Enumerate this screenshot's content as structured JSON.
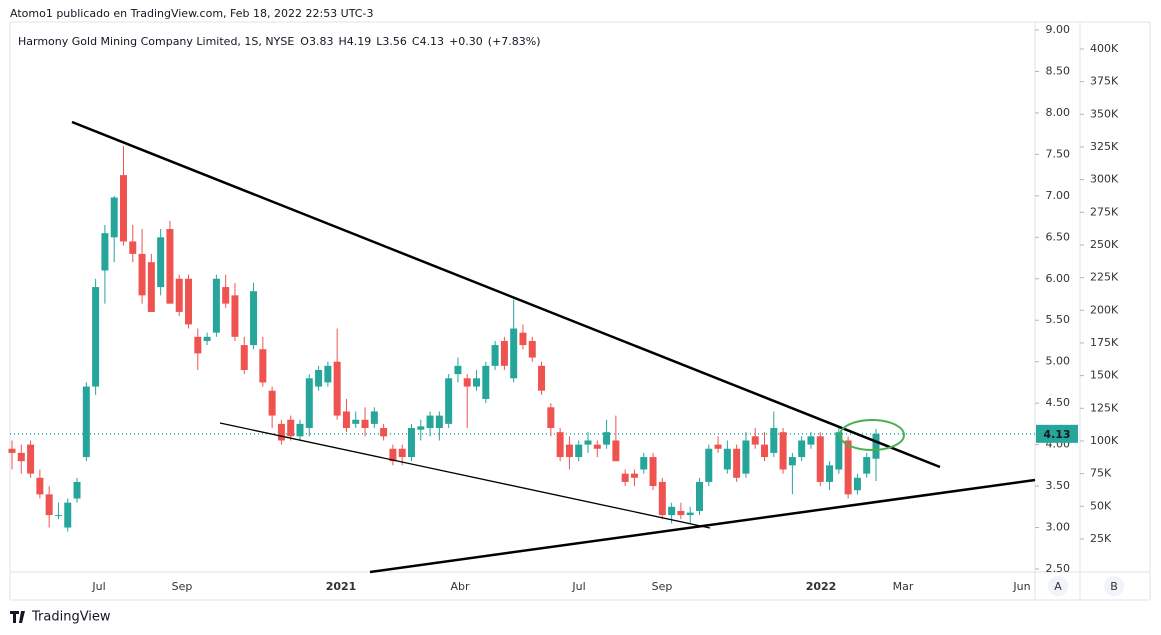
{
  "header": "Atomo1 publicado en TradingView.com, Feb 18, 2022 22:53 UTC-3",
  "footer": "TradingView",
  "buttons": [
    "A",
    "B"
  ],
  "chart_data": {
    "type": "candlestick",
    "title": "Harmony Gold Mining Company Limited, 1S, NYSE",
    "ohlc_legend": [
      {
        "label": "O",
        "value": 3.83
      },
      {
        "label": "H",
        "value": 4.19
      },
      {
        "label": "L",
        "value": 3.56
      },
      {
        "label": "C",
        "value": 4.13
      }
    ],
    "change": {
      "value": 0.3,
      "label": "+0.30"
    },
    "change_pct": {
      "value": 7.83,
      "label": "(+7.83%)"
    },
    "last_price": {
      "value": 4.13,
      "label": "4.13"
    },
    "up_color": "#26a69a",
    "down_color": "#ef5350",
    "x_labels": [
      "Jul",
      "Sep",
      "2021",
      "Abr",
      "Jul",
      "Sep",
      "2022",
      "Mar",
      "Jun"
    ],
    "ylim": [
      2.5,
      9
    ],
    "yticks": [
      {
        "value": 2.5,
        "label": "2.50"
      },
      {
        "value": 3,
        "label": "3.00"
      },
      {
        "value": 3.5,
        "label": "3.50"
      },
      {
        "value": 4,
        "label": "4.00"
      },
      {
        "value": 4.5,
        "label": "4.50"
      },
      {
        "value": 5,
        "label": "5.00"
      },
      {
        "value": 5.5,
        "label": "5.50"
      },
      {
        "value": 6,
        "label": "6.00"
      },
      {
        "value": 6.5,
        "label": "6.50"
      },
      {
        "value": 7,
        "label": "7.00"
      },
      {
        "value": 7.5,
        "label": "7.50"
      },
      {
        "value": 8,
        "label": "8.00"
      },
      {
        "value": 8.5,
        "label": "8.50"
      },
      {
        "value": 9,
        "label": "9.00"
      }
    ],
    "y2lim": [
      2000,
      414500
    ],
    "y2ticks": [
      {
        "value": 25000,
        "label": "25K"
      },
      {
        "value": 50000,
        "label": "50K"
      },
      {
        "value": 75000,
        "label": "75K"
      },
      {
        "value": 100000,
        "label": "100K"
      },
      {
        "value": 125000,
        "label": "125K"
      },
      {
        "value": 150000,
        "label": "150K"
      },
      {
        "value": 175000,
        "label": "175K"
      },
      {
        "value": 200000,
        "label": "200K"
      },
      {
        "value": 225000,
        "label": "225K"
      },
      {
        "value": 250000,
        "label": "250K"
      },
      {
        "value": 275000,
        "label": "275K"
      },
      {
        "value": 300000,
        "label": "300K"
      },
      {
        "value": 325000,
        "label": "325K"
      },
      {
        "value": 350000,
        "label": "350K"
      },
      {
        "value": 375000,
        "label": "375K"
      },
      {
        "value": 400000,
        "label": "400K"
      }
    ],
    "candles": [
      [
        3.95,
        4.05,
        3.7,
        3.9
      ],
      [
        3.9,
        4.0,
        3.65,
        3.8
      ],
      [
        4.0,
        4.05,
        3.6,
        3.65
      ],
      [
        3.6,
        3.7,
        3.35,
        3.4
      ],
      [
        3.4,
        3.5,
        3.0,
        3.15
      ],
      [
        3.15,
        3.3,
        3.1,
        3.15
      ],
      [
        3.0,
        3.35,
        2.95,
        3.3
      ],
      [
        3.35,
        3.6,
        3.3,
        3.55
      ],
      [
        3.85,
        4.75,
        3.8,
        4.7
      ],
      [
        4.7,
        6.0,
        4.6,
        5.9
      ],
      [
        6.1,
        6.65,
        5.7,
        6.55
      ],
      [
        6.5,
        7.0,
        6.2,
        6.98
      ],
      [
        7.25,
        7.6,
        6.4,
        6.45
      ],
      [
        6.45,
        6.65,
        6.2,
        6.3
      ],
      [
        6.3,
        6.6,
        5.7,
        5.8
      ],
      [
        6.2,
        6.3,
        5.6,
        5.6
      ],
      [
        5.9,
        6.6,
        5.8,
        6.5
      ],
      [
        6.6,
        6.7,
        5.7,
        5.7
      ],
      [
        6.0,
        6.05,
        5.55,
        5.6
      ],
      [
        6.0,
        6.05,
        5.4,
        5.45
      ],
      [
        5.3,
        5.4,
        4.9,
        5.1
      ],
      [
        5.25,
        5.35,
        5.2,
        5.3
      ],
      [
        5.35,
        6.05,
        5.3,
        6.0
      ],
      [
        5.9,
        6.05,
        5.65,
        5.7
      ],
      [
        5.8,
        5.95,
        5.25,
        5.3
      ],
      [
        5.2,
        5.3,
        4.85,
        4.9
      ],
      [
        5.2,
        5.95,
        5.15,
        5.85
      ],
      [
        5.15,
        5.3,
        4.7,
        4.75
      ],
      [
        4.65,
        4.7,
        4.2,
        4.35
      ],
      [
        4.25,
        4.3,
        4.0,
        4.05
      ],
      [
        4.3,
        4.35,
        4.05,
        4.1
      ],
      [
        4.1,
        4.3,
        4.05,
        4.25
      ],
      [
        4.2,
        4.85,
        4.1,
        4.8
      ],
      [
        4.7,
        4.95,
        4.65,
        4.9
      ],
      [
        4.75,
        5.0,
        4.7,
        4.95
      ],
      [
        5.0,
        5.4,
        4.3,
        4.35
      ],
      [
        4.4,
        4.55,
        4.15,
        4.2
      ],
      [
        4.25,
        4.4,
        4.2,
        4.3
      ],
      [
        4.3,
        4.45,
        4.1,
        4.2
      ],
      [
        4.25,
        4.45,
        4.2,
        4.4
      ],
      [
        4.2,
        4.25,
        4.05,
        4.1
      ],
      [
        3.95,
        4.0,
        3.75,
        3.8
      ],
      [
        3.95,
        4.0,
        3.75,
        3.85
      ],
      [
        3.85,
        4.25,
        3.8,
        4.2
      ],
      [
        4.18,
        4.3,
        4.05,
        4.22
      ],
      [
        4.2,
        4.4,
        4.1,
        4.35
      ],
      [
        4.2,
        4.4,
        4.05,
        4.35
      ],
      [
        4.25,
        4.85,
        4.2,
        4.8
      ],
      [
        4.85,
        5.05,
        4.75,
        4.95
      ],
      [
        4.8,
        4.85,
        4.2,
        4.7
      ],
      [
        4.7,
        4.9,
        4.65,
        4.8
      ],
      [
        4.55,
        5.0,
        4.5,
        4.95
      ],
      [
        4.95,
        5.25,
        4.9,
        5.2
      ],
      [
        5.25,
        5.3,
        4.9,
        4.95
      ],
      [
        4.8,
        5.75,
        4.75,
        5.4
      ],
      [
        5.35,
        5.45,
        5.15,
        5.2
      ],
      [
        5.25,
        5.3,
        5.0,
        5.05
      ],
      [
        4.95,
        5.0,
        4.6,
        4.65
      ],
      [
        4.45,
        4.5,
        4.1,
        4.2
      ],
      [
        4.15,
        4.2,
        3.8,
        3.85
      ],
      [
        4.0,
        4.1,
        3.7,
        3.85
      ],
      [
        3.85,
        4.05,
        3.8,
        4.0
      ],
      [
        4.0,
        4.15,
        3.9,
        4.05
      ],
      [
        4.0,
        4.05,
        3.85,
        3.95
      ],
      [
        4.0,
        4.3,
        3.95,
        4.15
      ],
      [
        4.05,
        4.35,
        3.8,
        3.8
      ],
      [
        3.65,
        3.7,
        3.5,
        3.55
      ],
      [
        3.65,
        3.7,
        3.5,
        3.6
      ],
      [
        3.7,
        3.9,
        3.65,
        3.85
      ],
      [
        3.85,
        3.9,
        3.45,
        3.5
      ],
      [
        3.55,
        3.6,
        3.1,
        3.15
      ],
      [
        3.15,
        3.3,
        3.05,
        3.25
      ],
      [
        3.2,
        3.3,
        3.1,
        3.15
      ],
      [
        3.15,
        3.25,
        3.05,
        3.18
      ],
      [
        3.2,
        3.6,
        3.15,
        3.55
      ],
      [
        3.55,
        4.0,
        3.5,
        3.95
      ],
      [
        4.0,
        4.1,
        3.9,
        3.95
      ],
      [
        3.7,
        4.05,
        3.65,
        3.95
      ],
      [
        3.95,
        4.0,
        3.55,
        3.6
      ],
      [
        3.65,
        4.15,
        3.6,
        4.05
      ],
      [
        4.1,
        4.2,
        3.95,
        4.0
      ],
      [
        4.0,
        4.15,
        3.8,
        3.85
      ],
      [
        3.9,
        4.4,
        3.85,
        4.2
      ],
      [
        4.15,
        4.2,
        3.65,
        3.7
      ],
      [
        3.75,
        3.9,
        3.4,
        3.85
      ],
      [
        3.85,
        4.1,
        3.8,
        4.05
      ],
      [
        4.0,
        4.15,
        3.95,
        4.1
      ],
      [
        4.1,
        4.15,
        3.5,
        3.55
      ],
      [
        3.55,
        3.8,
        3.45,
        3.75
      ],
      [
        3.7,
        4.2,
        3.65,
        4.15
      ],
      [
        4.05,
        4.1,
        3.35,
        3.4
      ],
      [
        3.45,
        3.65,
        3.4,
        3.6
      ],
      [
        3.65,
        3.9,
        3.6,
        3.85
      ],
      [
        3.83,
        4.19,
        3.56,
        4.13
      ]
    ]
  }
}
